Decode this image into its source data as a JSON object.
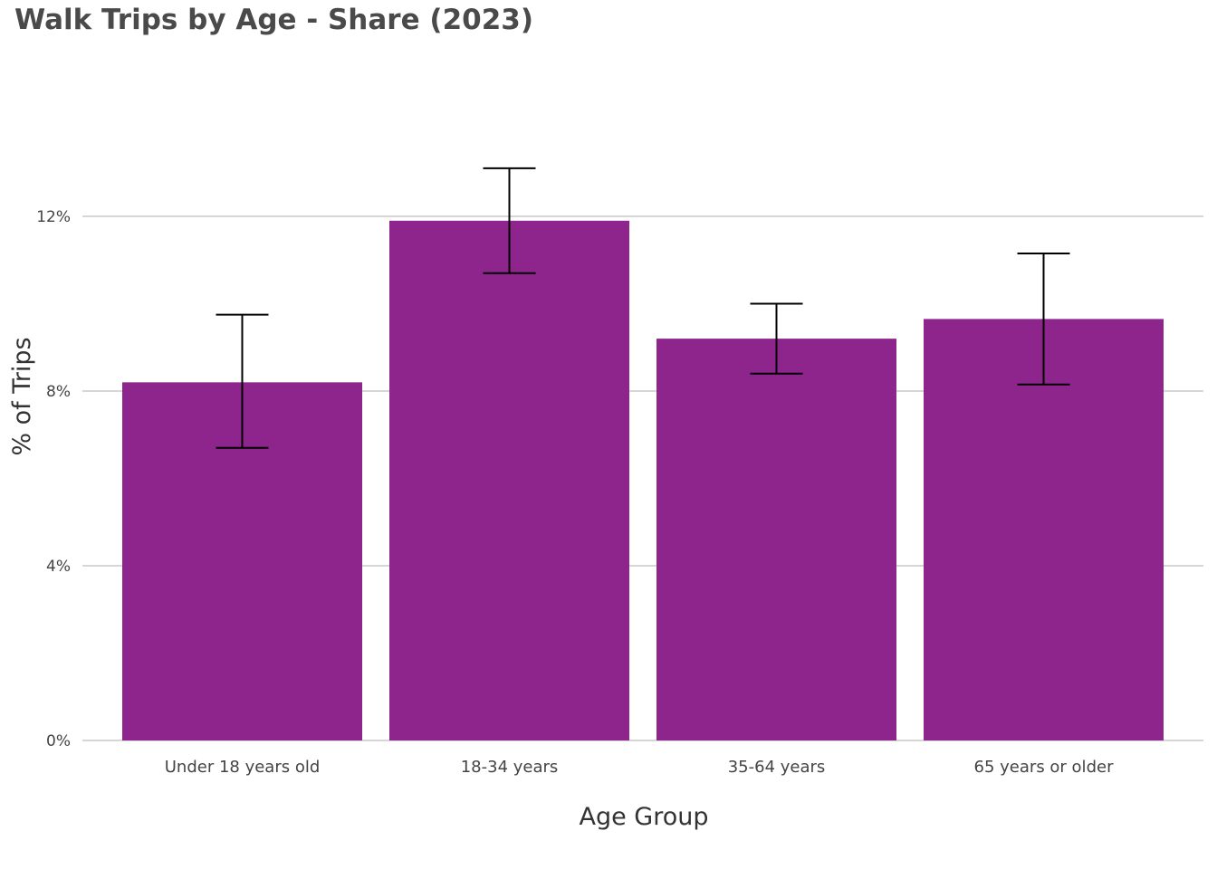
{
  "chart_data": {
    "type": "bar",
    "title": "Walk Trips by Age - Share (2023)",
    "xlabel": "Age Group",
    "ylabel": "% of Trips",
    "categories": [
      "Under 18 years old",
      "18-34 years",
      "35-64 years",
      "65 years or older"
    ],
    "values": [
      8.2,
      11.9,
      9.2,
      9.65
    ],
    "error_low": [
      6.7,
      10.7,
      8.4,
      8.15
    ],
    "error_high": [
      9.75,
      13.1,
      10.0,
      11.15
    ],
    "ylim": [
      0,
      15
    ],
    "yticks": [
      0,
      4,
      8,
      12
    ],
    "ytick_labels": [
      "0%",
      "4%",
      "8%",
      "12%"
    ],
    "grid": true,
    "legend": "none",
    "colors": {
      "bar": "#8e258d",
      "grid": "#c8c8c8",
      "error_bar": "#000000",
      "title": "#4a4a4a"
    }
  }
}
